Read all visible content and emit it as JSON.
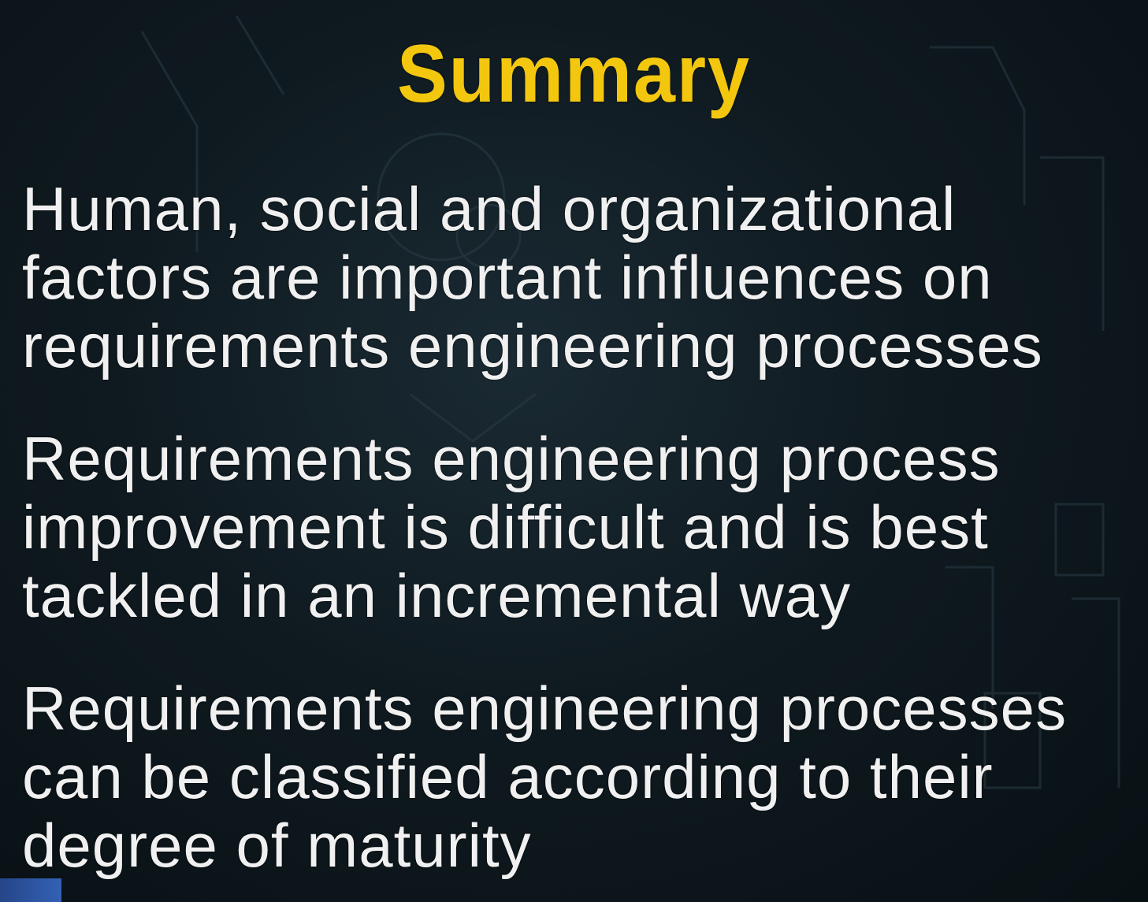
{
  "slide": {
    "title": "Summary",
    "bullets": [
      {
        "text": "Human, social and organizational\nfactors are important influences on\nrequirements engineering processes"
      },
      {
        "text": "Requirements engineering process\nimprovement is difficult and is best\ntackled in an incremental way"
      },
      {
        "text": "Requirements engineering processes\ncan be classified according to their\ndegree of maturity"
      }
    ]
  },
  "colors": {
    "title": "#f2c70e",
    "text": "#f0f0f0",
    "background": "#0f1a20"
  }
}
